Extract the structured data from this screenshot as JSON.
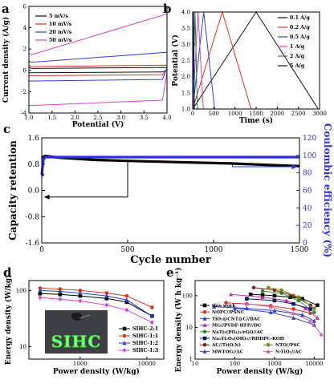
{
  "panels": {
    "a": {
      "label": "a"
    },
    "b": {
      "label": "b"
    },
    "c": {
      "label": "c"
    },
    "d": {
      "label": "d"
    },
    "e": {
      "label": "e"
    }
  },
  "photo": {
    "text": "SIHC"
  },
  "chart_data": [
    {
      "id": "a",
      "type": "line",
      "xlabel": "Potential (V)",
      "ylabel": "Current density (A/g)",
      "xlim": [
        1.0,
        4.0
      ],
      "ylim": [
        -4,
        6
      ],
      "xticks": [
        1.0,
        1.5,
        2.0,
        2.5,
        3.0,
        3.5,
        4.0
      ],
      "yticks": [
        -4,
        -2,
        0,
        2,
        4,
        6
      ],
      "legend": "top-left",
      "series": [
        {
          "name": "5 mV/s",
          "color": "#111111",
          "upper": [
            [
              1.0,
              0.3
            ],
            [
              1.05,
              0.18
            ],
            [
              4.0,
              0.28
            ]
          ],
          "lower": [
            [
              4.0,
              0.02
            ],
            [
              3.9,
              -0.15
            ],
            [
              1.0,
              -0.22
            ]
          ]
        },
        {
          "name": "10 mV/s",
          "color": "#e03020",
          "upper": [
            [
              1.0,
              0.5
            ],
            [
              1.05,
              0.35
            ],
            [
              4.0,
              0.5
            ]
          ],
          "lower": [
            [
              4.0,
              0.1
            ],
            [
              3.9,
              -0.4
            ],
            [
              1.0,
              -0.5
            ]
          ]
        },
        {
          "name": "20 mV/s",
          "color": "#2a3fd4",
          "upper": [
            [
              1.0,
              0.9
            ],
            [
              1.05,
              0.75
            ],
            [
              4.0,
              1.7
            ]
          ],
          "lower": [
            [
              4.0,
              0.2
            ],
            [
              3.9,
              -0.85
            ],
            [
              1.0,
              -1.0
            ]
          ]
        },
        {
          "name": "50 mV/s",
          "color": "#d83fd6",
          "upper": [
            [
              1.0,
              1.6
            ],
            [
              1.05,
              1.45
            ],
            [
              4.0,
              5.3
            ]
          ],
          "lower": [
            [
              4.0,
              -0.2
            ],
            [
              3.9,
              -2.8
            ],
            [
              1.0,
              -3.3
            ]
          ]
        }
      ]
    },
    {
      "id": "b",
      "type": "line",
      "xlabel": "Time (s)",
      "ylabel": "Potential (V)",
      "xlim": [
        0,
        3000
      ],
      "ylim": [
        1.0,
        4.0
      ],
      "xticks": [
        0,
        500,
        1000,
        1500,
        2000,
        2500,
        3000
      ],
      "yticks": [
        1.0,
        1.5,
        2.0,
        2.5,
        3.0,
        3.5,
        4.0
      ],
      "legend": "right",
      "series": [
        {
          "name": "0.1 A/g",
          "color": "#111111",
          "points": [
            [
              0,
              1.0
            ],
            [
              1500,
              4.0
            ],
            [
              2970,
              1.0
            ]
          ]
        },
        {
          "name": "0.2 A/g",
          "color": "#e03020",
          "points": [
            [
              0,
              1.0
            ],
            [
              700,
              4.0
            ],
            [
              1380,
              1.0
            ]
          ]
        },
        {
          "name": "0.5 A/g",
          "color": "#2a3fd4",
          "points": [
            [
              0,
              1.0
            ],
            [
              260,
              4.0
            ],
            [
              520,
              1.0
            ]
          ]
        },
        {
          "name": "1 A/g",
          "color": "#d83fd6",
          "points": [
            [
              0,
              1.0
            ],
            [
              125,
              4.0
            ],
            [
              250,
              1.0
            ]
          ]
        },
        {
          "name": "2 A/g",
          "color": "#2e8b2e",
          "points": [
            [
              0,
              1.0
            ],
            [
              55,
              4.0
            ],
            [
              110,
              1.0
            ]
          ]
        },
        {
          "name": "5 A/g",
          "color": "#0a1870",
          "points": [
            [
              0,
              1.0
            ],
            [
              20,
              4.0
            ],
            [
              40,
              1.0
            ]
          ]
        }
      ]
    },
    {
      "id": "c",
      "type": "line",
      "xlabel": "Cycle number",
      "ylabel": "Capacity retention",
      "y2label": "Coulombic efficiency (%)",
      "xlim": [
        0,
        1500
      ],
      "ylim": [
        -1.6,
        1.6
      ],
      "y2lim": [
        0,
        120
      ],
      "xticks": [
        0,
        500,
        1000,
        1500
      ],
      "yticks": [
        -1.6,
        -0.8,
        0.0,
        0.8,
        1.6
      ],
      "y2ticks": [
        0,
        20,
        40,
        60,
        80,
        100,
        120
      ],
      "series": [
        {
          "name": "Capacity retention",
          "color": "#000000",
          "axis": "left",
          "points": [
            [
              0,
              1.0
            ],
            [
              20,
              1.05
            ],
            [
              100,
              1.0
            ],
            [
              300,
              0.93
            ],
            [
              500,
              0.9
            ],
            [
              800,
              0.86
            ],
            [
              1100,
              0.82
            ],
            [
              1300,
              0.78
            ],
            [
              1500,
              0.74
            ]
          ]
        },
        {
          "name": "Coulombic efficiency",
          "color": "#2a2fd6",
          "axis": "right",
          "points": [
            [
              0,
              78
            ],
            [
              10,
              95
            ],
            [
              20,
              98
            ],
            [
              1500,
              98
            ]
          ]
        }
      ]
    },
    {
      "id": "d",
      "type": "line",
      "xlabel": "Power density (W/kg)",
      "ylabel": "Energy density (W/kg)",
      "xscale": "log",
      "yscale": "log",
      "xlim": [
        170,
        18000
      ],
      "ylim": [
        6,
        150
      ],
      "xticks": [
        1000,
        10000
      ],
      "yticks": [
        10,
        100
      ],
      "legend": "bottom-right",
      "series": [
        {
          "name": "SIHC-2:1",
          "color": "#000000",
          "marker": "square",
          "points": [
            [
              250,
              88
            ],
            [
              500,
              85
            ],
            [
              1000,
              80
            ],
            [
              2500,
              72
            ],
            [
              5000,
              62
            ],
            [
              12000,
              35
            ]
          ]
        },
        {
          "name": "SIHC-1:1",
          "color": "#e03020",
          "marker": "circle",
          "points": [
            [
              250,
              110
            ],
            [
              500,
              106
            ],
            [
              1000,
              100
            ],
            [
              2500,
              90
            ],
            [
              5000,
              80
            ],
            [
              12000,
              50
            ]
          ]
        },
        {
          "name": "SIHC-1:2",
          "color": "#2a3fd4",
          "marker": "triangle",
          "points": [
            [
              250,
              100
            ],
            [
              500,
              96
            ],
            [
              1000,
              90
            ],
            [
              2500,
              80
            ],
            [
              5000,
              68
            ],
            [
              12000,
              35
            ]
          ]
        },
        {
          "name": "SIHC-1:3",
          "color": "#d83fd6",
          "marker": "diamond",
          "points": [
            [
              250,
              75
            ],
            [
              500,
              70
            ],
            [
              1000,
              65
            ],
            [
              2500,
              55
            ],
            [
              5000,
              45
            ],
            [
              12000,
              27
            ]
          ]
        }
      ]
    },
    {
      "id": "e",
      "type": "line",
      "xlabel": "Power density (W/kg)",
      "ylabel": "Energy density (W h kg⁻¹)",
      "xscale": "log",
      "yscale": "log",
      "xlim": [
        10,
        18000
      ],
      "ylim": [
        1,
        300
      ],
      "xticks": [
        10,
        100,
        1000,
        10000
      ],
      "yticks": [
        1,
        10,
        100
      ],
      "legend": "bottom-left",
      "series": [
        {
          "name": "this work",
          "color": "#000000",
          "marker": "square",
          "points": [
            [
              250,
              110
            ],
            [
              500,
              106
            ],
            [
              1000,
              100
            ],
            [
              2500,
              90
            ],
            [
              5000,
              80
            ],
            [
              12000,
              50
            ]
          ]
        },
        {
          "name": "NOFC//PSNC",
          "color": "#e03020",
          "marker": "circle",
          "points": [
            [
              60,
              60
            ],
            [
              200,
              55
            ],
            [
              800,
              48
            ],
            [
              3000,
              38
            ],
            [
              8000,
              28
            ]
          ]
        },
        {
          "name": "TiO₂@CNT@C//BAC",
          "color": "#2a3fd4",
          "marker": "triangle",
          "points": [
            [
              30,
              45
            ],
            [
              200,
              40
            ],
            [
              1000,
              34
            ],
            [
              5000,
              25
            ],
            [
              10000,
              16
            ]
          ]
        },
        {
          "name": "MG//PVDF-HFP//DC",
          "color": "#c0309f",
          "marker": "triangle",
          "points": [
            [
              80,
              110
            ],
            [
              500,
              90
            ],
            [
              2000,
              70
            ],
            [
              6000,
              40
            ],
            [
              12000,
              20
            ]
          ]
        },
        {
          "name": "NaTi₂(PO₄)₃/rGO//AC",
          "color": "#2e8b2e",
          "marker": "circle",
          "points": [
            [
              500,
              140
            ],
            [
              1500,
              120
            ],
            [
              4000,
              70
            ],
            [
              10000,
              30
            ]
          ]
        },
        {
          "name": "Na₂Ti₂O₄(OH)₂//RHDPC-KOH",
          "color": "#0a1870",
          "marker": "square",
          "points": [
            [
              200,
              80
            ],
            [
              1000,
              70
            ],
            [
              3000,
              55
            ],
            [
              8000,
              38
            ]
          ]
        },
        {
          "name": "AC//Ti(O,N)",
          "color": "#8b1a1a",
          "marker": "circle",
          "points": [
            [
              300,
              180
            ],
            [
              1000,
              150
            ],
            [
              3000,
              100
            ],
            [
              8000,
              50
            ]
          ]
        },
        {
          "name": "NTO//PSC",
          "color": "#7a8b1a",
          "marker": "circle",
          "points": [
            [
              700,
              180
            ],
            [
              1500,
              150
            ],
            [
              4000,
              90
            ],
            [
              10000,
              40
            ]
          ]
        },
        {
          "name": "MWTOG//AC",
          "color": "#4040c0",
          "marker": "triangle",
          "points": [
            [
              100,
              40
            ],
            [
              800,
              30
            ],
            [
              3000,
              20
            ],
            [
              10000,
              12
            ]
          ]
        },
        {
          "name": "N-TiO₂//AC",
          "color": "#d060b0",
          "marker": "triangle",
          "points": [
            [
              200,
              55
            ],
            [
              800,
              45
            ],
            [
              3000,
              28
            ],
            [
              8000,
              16
            ],
            [
              15000,
              6
            ]
          ]
        }
      ]
    }
  ]
}
